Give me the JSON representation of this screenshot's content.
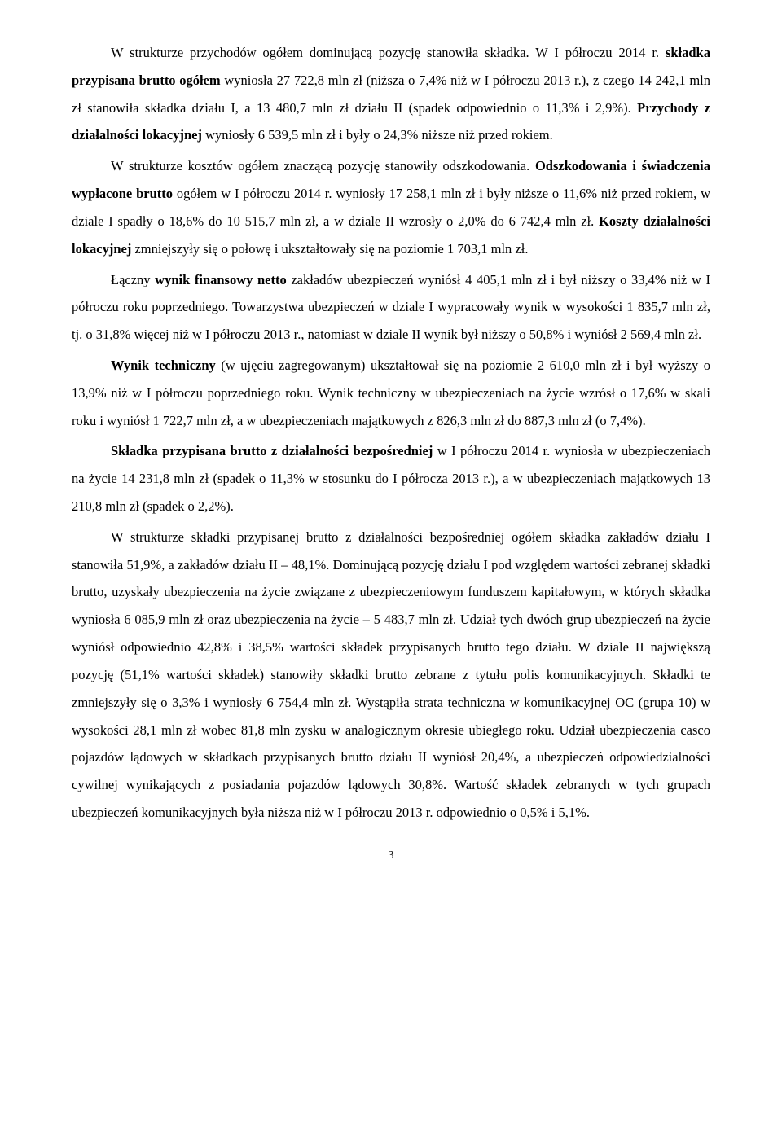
{
  "document": {
    "page_number": "3",
    "font_family": "Times New Roman",
    "body_fontsize_pt": 12,
    "line_height": 2.05,
    "text_color": "#000000",
    "background_color": "#ffffff",
    "paragraphs": [
      {
        "runs": [
          {
            "t": "W strukturze przychodów ogółem dominującą pozycję stanowiła składka. W I półroczu 2014 r. ",
            "b": false
          },
          {
            "t": "składka przypisana brutto ogółem",
            "b": true
          },
          {
            "t": " wyniosła 27 722,8 mln zł (niższa o 7,4% niż w I półroczu 2013 r.), z czego 14 242,1 mln zł stanowiła składka działu I, a 13 480,7 mln zł działu II (spadek odpowiednio o 11,3% i 2,9%). ",
            "b": false
          },
          {
            "t": "Przychody z działalności lokacyjnej",
            "b": true
          },
          {
            "t": " wyniosły 6 539,5 mln zł i były o 24,3% niższe niż przed rokiem.",
            "b": false
          }
        ]
      },
      {
        "runs": [
          {
            "t": "W strukturze kosztów ogółem znaczącą pozycję stanowiły odszkodowania. ",
            "b": false
          },
          {
            "t": "Odszkodowania i świadczenia wypłacone brutto",
            "b": true
          },
          {
            "t": " ogółem w I półroczu 2014 r. wyniosły 17 258,1 mln zł i były niższe o 11,6% niż przed rokiem, w dziale I spadły o 18,6% do 10 515,7 mln zł, a w dziale II wzrosły o 2,0% do 6 742,4 mln zł. ",
            "b": false
          },
          {
            "t": "Koszty działalności lokacyjnej",
            "b": true
          },
          {
            "t": " zmniejszyły się o połowę i ukształtowały się na poziomie 1 703,1 mln zł.",
            "b": false
          }
        ]
      },
      {
        "runs": [
          {
            "t": "Łączny ",
            "b": false
          },
          {
            "t": "wynik finansowy netto",
            "b": true
          },
          {
            "t": " zakładów ubezpieczeń wyniósł 4 405,1 mln zł i był niższy o 33,4% niż w I półroczu roku poprzedniego. Towarzystwa ubezpieczeń w dziale I wypracowały wynik w wysokości 1 835,7 mln zł, tj. o 31,8% więcej niż w I półroczu 2013 r., natomiast w dziale II wynik był niższy o 50,8% i wyniósł 2 569,4 mln zł.",
            "b": false
          }
        ]
      },
      {
        "runs": [
          {
            "t": "Wynik techniczny",
            "b": true
          },
          {
            "t": " (w ujęciu zagregowanym) ukształtował się na poziomie 2 610,0 mln zł i był wyższy o 13,9% niż w I półroczu poprzedniego roku. Wynik techniczny w ubezpieczeniach na życie wzrósł o 17,6% w skali roku i wyniósł 1 722,7 mln zł, a w ubezpieczeniach majątkowych z 826,3 mln zł do 887,3 mln zł (o 7,4%).",
            "b": false
          }
        ]
      },
      {
        "runs": [
          {
            "t": "Składka przypisana brutto z działalności bezpośredniej",
            "b": true
          },
          {
            "t": " w I półroczu 2014 r. wyniosła w ubezpieczeniach na życie 14 231,8 mln zł (spadek o 11,3% w stosunku do I półrocza 2013 r.), a w ubezpieczeniach majątkowych 13 210,8 mln zł (spadek o 2,2%).",
            "b": false
          }
        ]
      },
      {
        "runs": [
          {
            "t": "W strukturze składki przypisanej brutto z działalności bezpośredniej ogółem składka zakładów działu I stanowiła 51,9%, a zakładów działu II – 48,1%. Dominującą pozycję działu I pod względem wartości zebranej składki brutto, uzyskały ubezpieczenia na życie związane z ubezpieczeniowym funduszem kapitałowym, w których składka wyniosła 6 085,9 mln zł oraz ubezpieczenia na życie – 5 483,7 mln zł. Udział tych dwóch grup ubezpieczeń na życie wyniósł odpowiednio 42,8% i 38,5% wartości składek przypisanych brutto tego działu. W dziale II największą pozycję (51,1% wartości składek) stanowiły składki brutto zebrane z tytułu polis komunikacyjnych. Składki te zmniejszyły się o 3,3% i wyniosły 6 754,4 mln zł. Wystąpiła strata techniczna w komunikacyjnej OC (grupa 10) w wysokości 28,1 mln zł wobec 81,8 mln zysku w analogicznym okresie ubiegłego roku. Udział ubezpieczenia casco pojazdów lądowych w składkach przypisanych brutto działu II wyniósł 20,4%, a ubezpieczeń odpowiedzialności cywilnej wynikających z posiadania pojazdów lądowych 30,8%. Wartość składek zebranych w tych grupach ubezpieczeń komunikacyjnych była niższa niż w I półroczu 2013 r. odpowiednio o 0,5% i 5,1%.",
            "b": false
          }
        ]
      }
    ]
  }
}
